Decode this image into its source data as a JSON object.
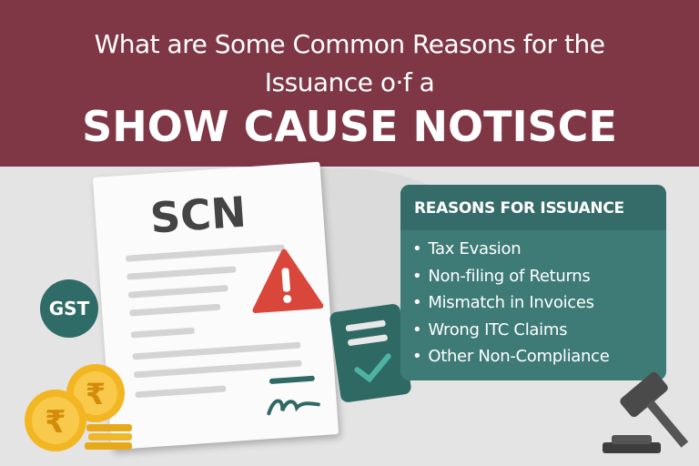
{
  "header": {
    "line1": "What are Some Common Reasons for the",
    "line2": "Issuance o·f a",
    "line3": "SHOW CAUSE NOTISCE",
    "bg_color": "#7f3745"
  },
  "document": {
    "title": "SCN",
    "icon": "warning-icon"
  },
  "badge": {
    "label": "GST"
  },
  "panel": {
    "title": "REASONS FOR ISSUANCE",
    "items": [
      "Tax Evasion",
      "Non-filing of Returns",
      "Mismatch in Invoices",
      "Wrong ITC Claims",
      "Other Non-Compliance"
    ],
    "color": "#3e7b77"
  },
  "icons": [
    "rupee-coin-icon",
    "checklist-icon",
    "gavel-icon"
  ]
}
